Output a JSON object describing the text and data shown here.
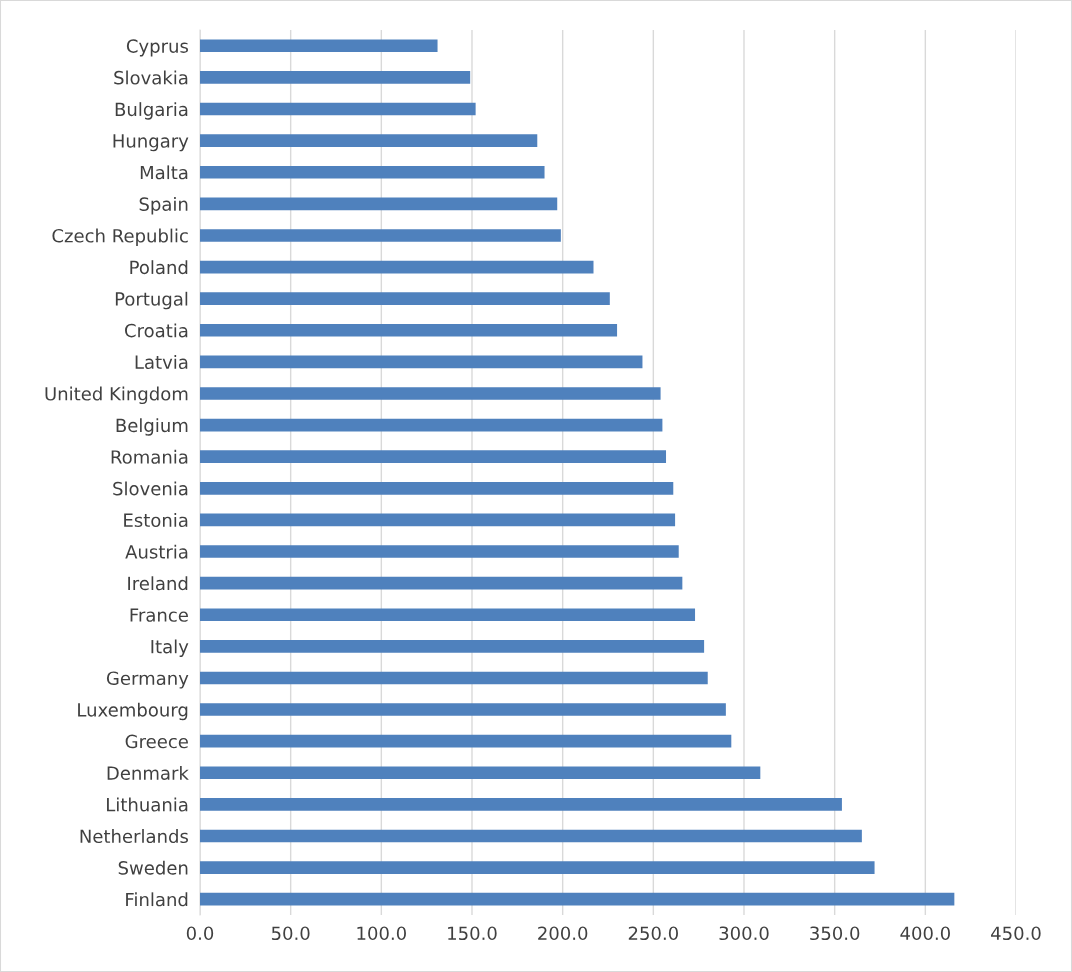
{
  "chart_data": {
    "type": "bar",
    "orientation": "horizontal",
    "categories": [
      "Cyprus",
      "Slovakia",
      "Bulgaria",
      "Hungary",
      "Malta",
      "Spain",
      "Czech Republic",
      "Poland",
      "Portugal",
      "Croatia",
      "Latvia",
      "United Kingdom",
      "Belgium",
      "Romania",
      "Slovenia",
      "Estonia",
      "Austria",
      "Ireland",
      "France",
      "Italy",
      "Germany",
      "Luxembourg",
      "Greece",
      "Denmark",
      "Lithuania",
      "Netherlands",
      "Sweden",
      "Finland"
    ],
    "values": [
      131,
      149,
      152,
      186,
      190,
      197,
      199,
      217,
      226,
      230,
      244,
      254,
      255,
      257,
      261,
      262,
      264,
      266,
      273,
      278,
      280,
      290,
      293,
      309,
      354,
      365,
      372,
      416
    ],
    "color": "#4f81bd",
    "xlim": [
      0,
      450
    ],
    "xticks": [
      {
        "value": 0,
        "label": "0.0"
      },
      {
        "value": 50,
        "label": "50.0"
      },
      {
        "value": 100,
        "label": "100.0"
      },
      {
        "value": 150,
        "label": "150.0"
      },
      {
        "value": 200,
        "label": "200.0"
      },
      {
        "value": 250,
        "label": "250.0"
      },
      {
        "value": 300,
        "label": "300.0"
      },
      {
        "value": 350,
        "label": "350.0"
      },
      {
        "value": 400,
        "label": "400.0"
      },
      {
        "value": 450,
        "label": "450.0"
      }
    ],
    "grid": "x",
    "legend": false
  }
}
